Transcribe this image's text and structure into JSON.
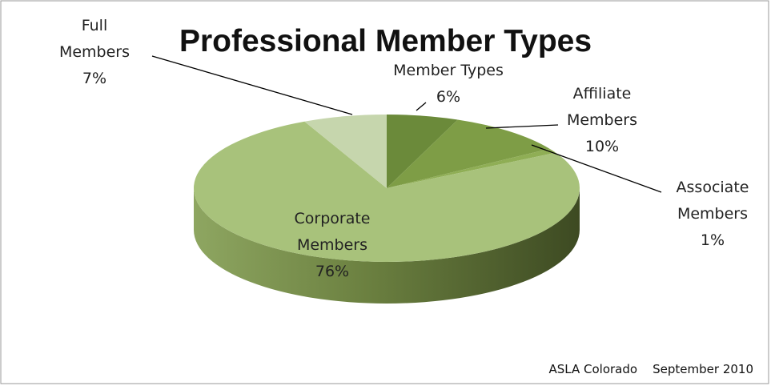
{
  "chart_data": {
    "type": "pie3d",
    "title": "Professional Member Types",
    "categories": [
      "Member Types",
      "Affiliate Members",
      "Associate Members",
      "Corporate Members",
      "Full Members"
    ],
    "values": [
      6,
      10,
      1,
      76,
      7
    ],
    "value_labels": [
      "6%",
      "10%",
      "1%",
      "76%",
      "7%"
    ],
    "colors": [
      "#6b8a3a",
      "#7e9d46",
      "#8fae55",
      "#a8c27b",
      "#c6d6ad"
    ],
    "annotations": [
      "ASLA Colorado",
      "September 2010"
    ]
  }
}
